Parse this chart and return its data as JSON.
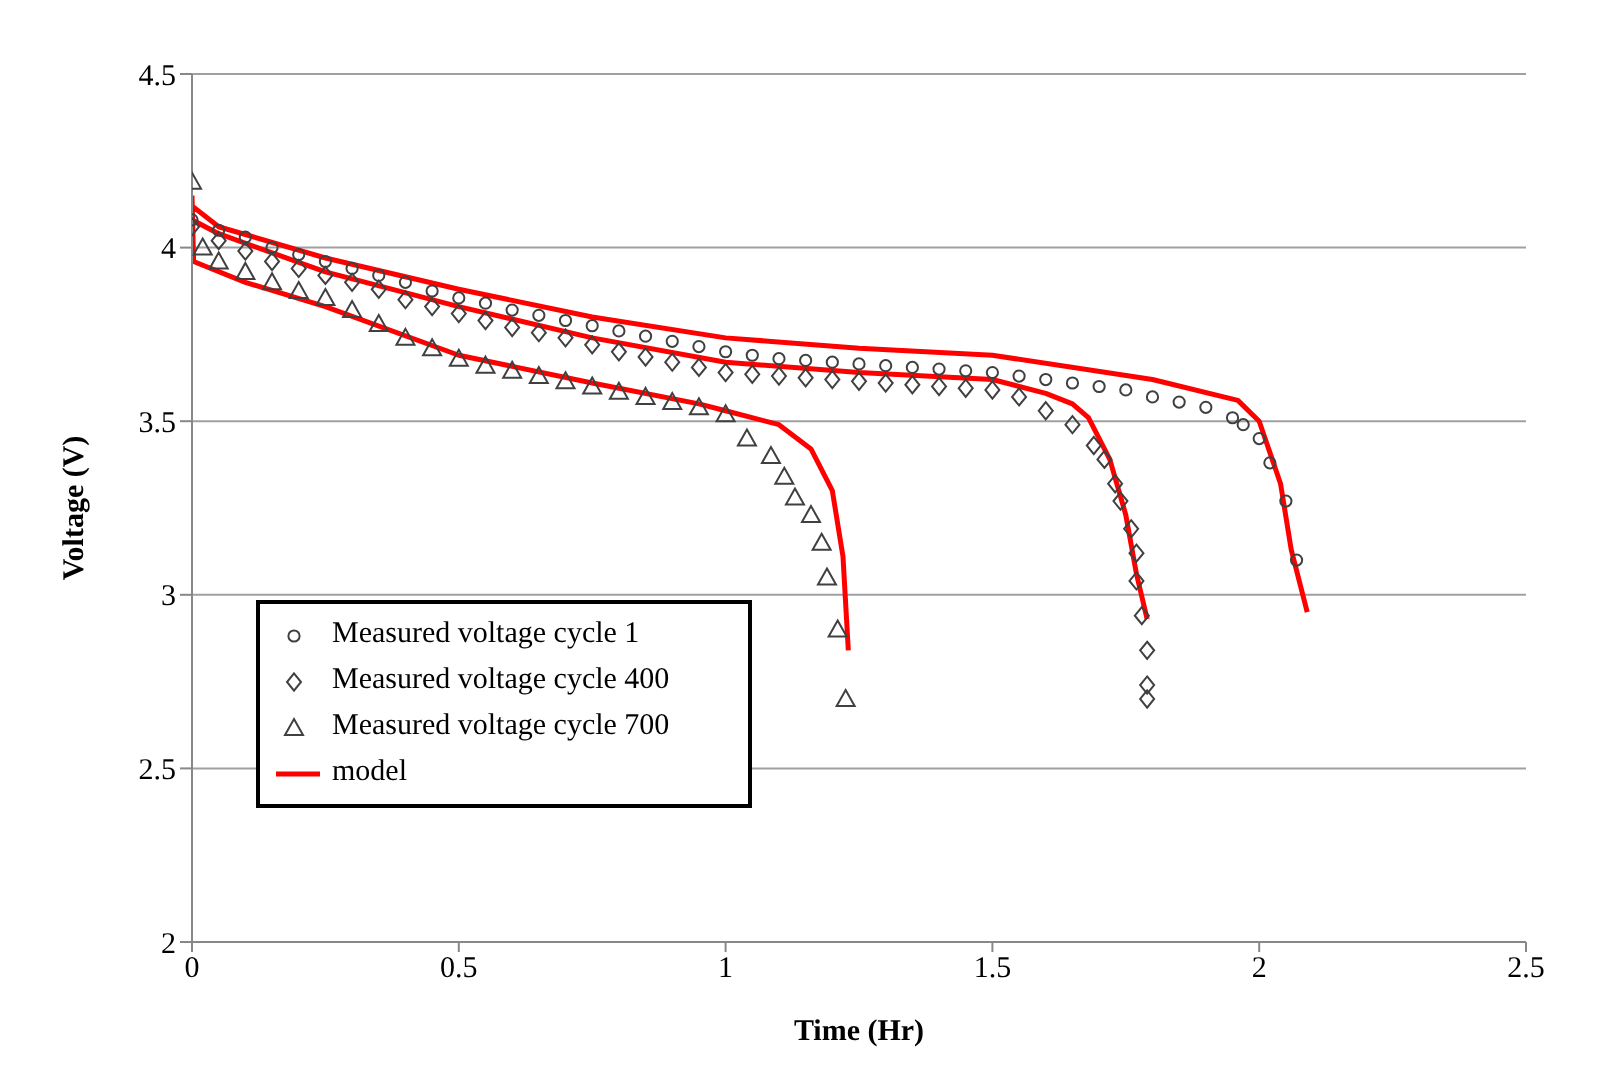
{
  "chart_data": {
    "type": "scatter",
    "xlabel": "Time (Hr)",
    "ylabel": "Voltage (V)",
    "xlim": [
      0,
      2.5
    ],
    "xticks": [
      0,
      0.5,
      1,
      1.5,
      2,
      2.5
    ],
    "ylim": [
      2,
      4.5
    ],
    "yticks": [
      2,
      2.5,
      3,
      3.5,
      4,
      4.5
    ],
    "grid": "y",
    "legend": "bottom left",
    "series": [
      {
        "name": "Measured voltage cycle 1",
        "marker": "circle",
        "color": "#404040",
        "x": [
          0,
          0.05,
          0.1,
          0.15,
          0.2,
          0.25,
          0.3,
          0.35,
          0.4,
          0.45,
          0.5,
          0.55,
          0.6,
          0.65,
          0.7,
          0.75,
          0.8,
          0.85,
          0.9,
          0.95,
          1.0,
          1.05,
          1.1,
          1.15,
          1.2,
          1.25,
          1.3,
          1.35,
          1.4,
          1.45,
          1.5,
          1.55,
          1.6,
          1.65,
          1.7,
          1.75,
          1.8,
          1.85,
          1.9,
          1.95,
          1.97,
          2.0,
          2.02,
          2.05,
          2.07
        ],
        "values": [
          4.08,
          4.05,
          4.03,
          4.0,
          3.98,
          3.96,
          3.94,
          3.92,
          3.9,
          3.875,
          3.855,
          3.84,
          3.82,
          3.805,
          3.79,
          3.775,
          3.76,
          3.745,
          3.73,
          3.715,
          3.7,
          3.69,
          3.68,
          3.675,
          3.67,
          3.665,
          3.66,
          3.655,
          3.65,
          3.645,
          3.64,
          3.63,
          3.62,
          3.61,
          3.6,
          3.59,
          3.57,
          3.555,
          3.54,
          3.51,
          3.49,
          3.45,
          3.38,
          3.27,
          3.1
        ]
      },
      {
        "name": "Measured voltage cycle 400",
        "marker": "diamond",
        "color": "#404040",
        "x": [
          0,
          0.05,
          0.1,
          0.15,
          0.2,
          0.25,
          0.3,
          0.35,
          0.4,
          0.45,
          0.5,
          0.55,
          0.6,
          0.65,
          0.7,
          0.75,
          0.8,
          0.85,
          0.9,
          0.95,
          1.0,
          1.05,
          1.1,
          1.15,
          1.2,
          1.25,
          1.3,
          1.35,
          1.4,
          1.45,
          1.5,
          1.55,
          1.6,
          1.65,
          1.69,
          1.71,
          1.73,
          1.74,
          1.76,
          1.77,
          1.77,
          1.78,
          1.79,
          1.79,
          1.79
        ],
        "values": [
          4.06,
          4.02,
          3.99,
          3.96,
          3.94,
          3.92,
          3.9,
          3.88,
          3.85,
          3.83,
          3.81,
          3.79,
          3.77,
          3.755,
          3.74,
          3.72,
          3.7,
          3.685,
          3.67,
          3.655,
          3.64,
          3.635,
          3.63,
          3.625,
          3.62,
          3.615,
          3.61,
          3.605,
          3.6,
          3.595,
          3.59,
          3.57,
          3.53,
          3.49,
          3.43,
          3.39,
          3.32,
          3.27,
          3.19,
          3.12,
          3.04,
          2.94,
          2.84,
          2.74,
          2.7
        ]
      },
      {
        "name": "Measured voltage cycle 700",
        "marker": "triangle",
        "color": "#404040",
        "x": [
          0,
          0.02,
          0.05,
          0.1,
          0.15,
          0.2,
          0.25,
          0.3,
          0.35,
          0.4,
          0.45,
          0.5,
          0.55,
          0.6,
          0.65,
          0.7,
          0.75,
          0.8,
          0.85,
          0.9,
          0.95,
          1.0,
          1.04,
          1.085,
          1.11,
          1.13,
          1.16,
          1.18,
          1.19,
          1.21,
          1.225
        ],
        "values": [
          4.19,
          4.0,
          3.96,
          3.93,
          3.9,
          3.875,
          3.855,
          3.82,
          3.78,
          3.74,
          3.71,
          3.68,
          3.66,
          3.645,
          3.63,
          3.615,
          3.6,
          3.585,
          3.57,
          3.555,
          3.54,
          3.52,
          3.45,
          3.4,
          3.34,
          3.28,
          3.23,
          3.15,
          3.05,
          2.9,
          2.7
        ]
      },
      {
        "name": "model",
        "type": "line",
        "marker": "none",
        "color": "#ff0000",
        "x": [
          0,
          0.05,
          0.25,
          0.5,
          0.75,
          1.0,
          1.25,
          1.5,
          1.8,
          1.96,
          2.0,
          2.04,
          2.06,
          2.09,
          0,
          0.05,
          0.25,
          0.5,
          0.75,
          1.0,
          1.25,
          1.5,
          1.6,
          1.65,
          1.68,
          1.72,
          1.75,
          1.77,
          1.79,
          0,
          0.003,
          0.1,
          0.25,
          0.5,
          0.75,
          0.95,
          1.0,
          1.1,
          1.16,
          1.2,
          1.22,
          1.23
        ],
        "values": [
          4.12,
          4.06,
          3.97,
          3.88,
          3.8,
          3.74,
          3.71,
          3.69,
          3.62,
          3.56,
          3.5,
          3.32,
          3.13,
          2.95,
          4.08,
          4.04,
          3.93,
          3.83,
          3.74,
          3.67,
          3.64,
          3.62,
          3.58,
          3.55,
          3.51,
          3.39,
          3.23,
          3.06,
          2.93,
          4.15,
          3.96,
          3.9,
          3.83,
          3.69,
          3.61,
          3.55,
          3.53,
          3.49,
          3.42,
          3.3,
          3.11,
          2.84
        ]
      }
    ]
  }
}
